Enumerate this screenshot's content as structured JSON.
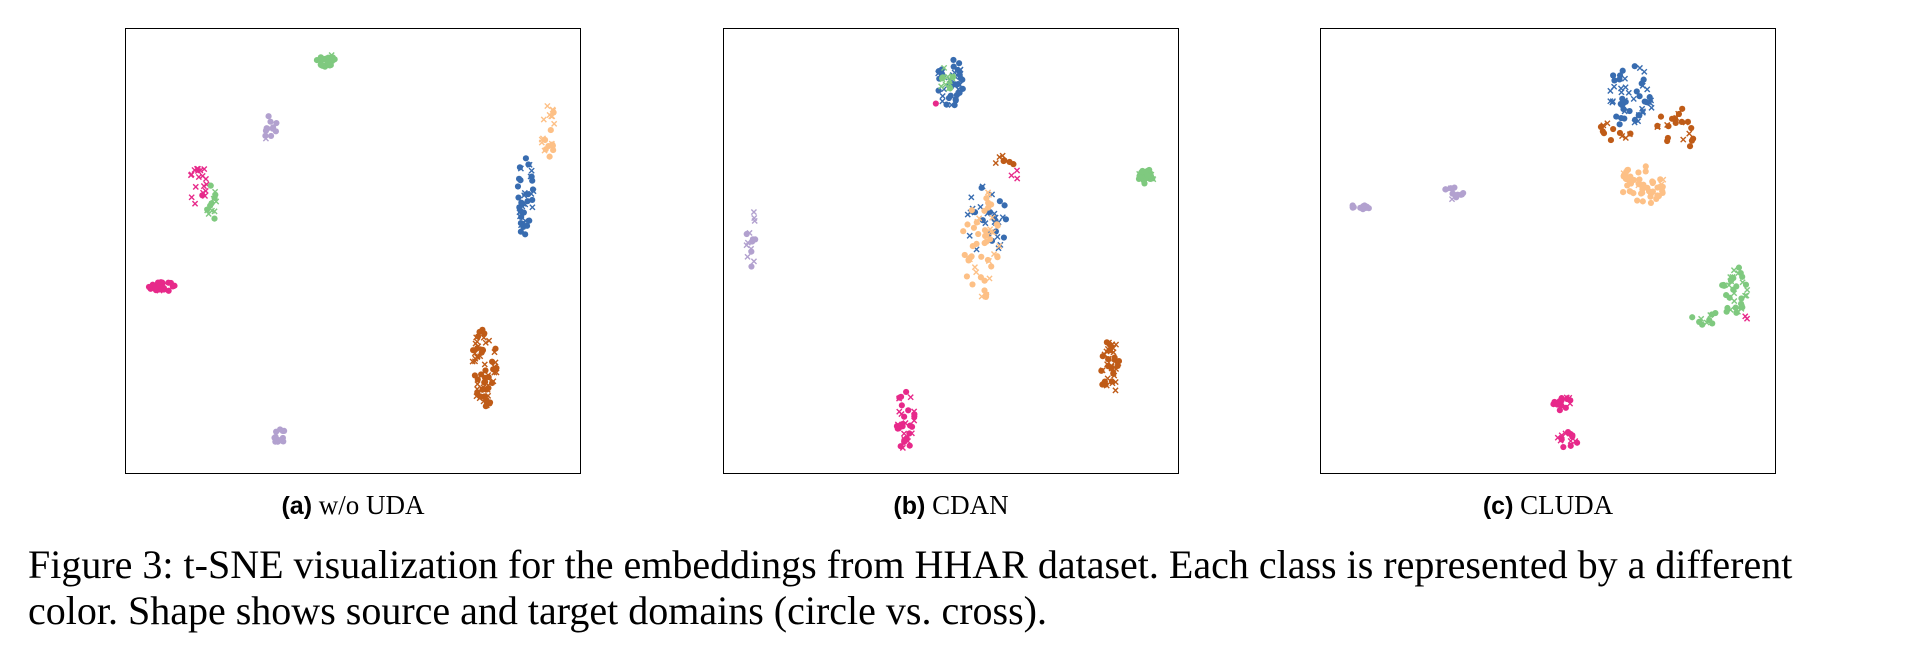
{
  "figure": {
    "caption": "Figure 3: t-SNE visualization for the embeddings from HHAR dataset. Each class is represented by a different color. Shape shows source and target domains (circle vs. cross).",
    "class_colors": [
      "#e7298a",
      "#7fc97f",
      "#b2a1cf",
      "#386cb0",
      "#fdc086",
      "#bf5b17"
    ],
    "marker_legend": {
      "source": "circle",
      "target": "cross"
    }
  },
  "panels": [
    {
      "label": "(a)",
      "title": "w/o UDA"
    },
    {
      "label": "(b)",
      "title": "CDAN"
    },
    {
      "label": "(c)",
      "title": "CLUDA"
    }
  ],
  "chart_data": [
    {
      "type": "scatter",
      "title": "w/o UDA",
      "xlim": [
        0,
        100
      ],
      "ylim": [
        0,
        100
      ],
      "axes_ticks": "none",
      "grid": false,
      "legend": "none",
      "clusters": [
        {
          "color": "#7fc97f",
          "x": 44,
          "y": 93,
          "sx": 1.5,
          "sy": 1.1,
          "n": 26,
          "target_frac": 0.1
        },
        {
          "color": "#b2a1cf",
          "x": 32,
          "y": 77,
          "sx": 1.0,
          "sy": 2.8,
          "n": 12,
          "target_frac": 0.1
        },
        {
          "color": "#e7298a",
          "x": 16,
          "y": 65,
          "sx": 1.3,
          "sy": 4.0,
          "n": 20,
          "target_frac": 0.75
        },
        {
          "color": "#7fc97f",
          "x": 19,
          "y": 61,
          "sx": 1.0,
          "sy": 3.0,
          "n": 14,
          "target_frac": 0.6
        },
        {
          "color": "#e7298a",
          "x": 8,
          "y": 42,
          "sx": 2.3,
          "sy": 0.8,
          "n": 26,
          "target_frac": 0.1
        },
        {
          "color": "#fdc086",
          "x": 93,
          "y": 77,
          "sx": 1.2,
          "sy": 4.5,
          "n": 22,
          "target_frac": 0.5
        },
        {
          "color": "#386cb0",
          "x": 88,
          "y": 62,
          "sx": 1.3,
          "sy": 7.0,
          "n": 42,
          "target_frac": 0.45
        },
        {
          "color": "#bf5b17",
          "x": 79,
          "y": 24,
          "sx": 2.0,
          "sy": 6.5,
          "n": 70,
          "target_frac": 0.5
        },
        {
          "color": "#b2a1cf",
          "x": 34,
          "y": 8,
          "sx": 1.0,
          "sy": 1.5,
          "n": 12,
          "target_frac": 0.0
        }
      ]
    },
    {
      "type": "scatter",
      "title": "CDAN",
      "xlim": [
        0,
        100
      ],
      "ylim": [
        0,
        100
      ],
      "axes_ticks": "none",
      "grid": false,
      "legend": "none",
      "clusters": [
        {
          "color": "#386cb0",
          "x": 50,
          "y": 88,
          "sx": 2.3,
          "sy": 3.8,
          "n": 42,
          "target_frac": 0.35
        },
        {
          "color": "#7fc97f",
          "x": 49,
          "y": 89,
          "sx": 1.2,
          "sy": 2.0,
          "n": 14,
          "target_frac": 0.6
        },
        {
          "color": "#e7298a",
          "x": 47,
          "y": 83,
          "sx": 0.4,
          "sy": 0.4,
          "n": 1,
          "target_frac": 0.0
        },
        {
          "color": "#386cb0",
          "x": 58,
          "y": 57,
          "sx": 3.2,
          "sy": 6.0,
          "n": 32,
          "target_frac": 0.75
        },
        {
          "color": "#fdc086",
          "x": 57,
          "y": 52,
          "sx": 3.2,
          "sy": 9.0,
          "n": 55,
          "target_frac": 0.3
        },
        {
          "color": "#bf5b17",
          "x": 62,
          "y": 69,
          "sx": 1.8,
          "sy": 2.2,
          "n": 7,
          "target_frac": 0.5
        },
        {
          "color": "#e7298a",
          "x": 64,
          "y": 67,
          "sx": 0.8,
          "sy": 1.0,
          "n": 3,
          "target_frac": 1.0
        },
        {
          "color": "#7fc97f",
          "x": 93,
          "y": 67,
          "sx": 1.3,
          "sy": 1.3,
          "n": 30,
          "target_frac": 0.1
        },
        {
          "color": "#b2a1cf",
          "x": 6,
          "y": 54,
          "sx": 0.8,
          "sy": 6.0,
          "n": 16,
          "target_frac": 0.3
        },
        {
          "color": "#bf5b17",
          "x": 85,
          "y": 24,
          "sx": 1.5,
          "sy": 4.8,
          "n": 45,
          "target_frac": 0.5
        },
        {
          "color": "#e7298a",
          "x": 40,
          "y": 12,
          "sx": 1.5,
          "sy": 5.0,
          "n": 34,
          "target_frac": 0.35
        }
      ]
    },
    {
      "type": "scatter",
      "title": "CLUDA",
      "xlim": [
        0,
        100
      ],
      "ylim": [
        0,
        100
      ],
      "axes_ticks": "none",
      "grid": false,
      "legend": "none",
      "clusters": [
        {
          "color": "#386cb0",
          "x": 68,
          "y": 85,
          "sx": 3.8,
          "sy": 5.2,
          "n": 55,
          "target_frac": 0.5
        },
        {
          "color": "#bf5b17",
          "x": 78,
          "y": 77,
          "sx": 3.0,
          "sy": 4.0,
          "n": 24,
          "target_frac": 0.5
        },
        {
          "color": "#bf5b17",
          "x": 65,
          "y": 77,
          "sx": 3.0,
          "sy": 1.5,
          "n": 12,
          "target_frac": 0.5
        },
        {
          "color": "#fdc086",
          "x": 71,
          "y": 65,
          "sx": 3.8,
          "sy": 3.2,
          "n": 55,
          "target_frac": 0.1
        },
        {
          "color": "#b2a1cf",
          "x": 9,
          "y": 60,
          "sx": 1.8,
          "sy": 0.6,
          "n": 12,
          "target_frac": 0.1
        },
        {
          "color": "#b2a1cf",
          "x": 29,
          "y": 63,
          "sx": 1.8,
          "sy": 1.0,
          "n": 14,
          "target_frac": 0.2
        },
        {
          "color": "#7fc97f",
          "x": 91,
          "y": 41,
          "sx": 2.2,
          "sy": 4.0,
          "n": 38,
          "target_frac": 0.5
        },
        {
          "color": "#7fc97f",
          "x": 85,
          "y": 35,
          "sx": 2.5,
          "sy": 1.2,
          "n": 10,
          "target_frac": 0.5
        },
        {
          "color": "#e7298a",
          "x": 94,
          "y": 35,
          "sx": 0.5,
          "sy": 0.5,
          "n": 2,
          "target_frac": 1.0
        },
        {
          "color": "#e7298a",
          "x": 53,
          "y": 16,
          "sx": 1.5,
          "sy": 1.5,
          "n": 16,
          "target_frac": 0.3
        },
        {
          "color": "#e7298a",
          "x": 54,
          "y": 7,
          "sx": 1.8,
          "sy": 1.8,
          "n": 14,
          "target_frac": 0.4
        }
      ]
    }
  ]
}
